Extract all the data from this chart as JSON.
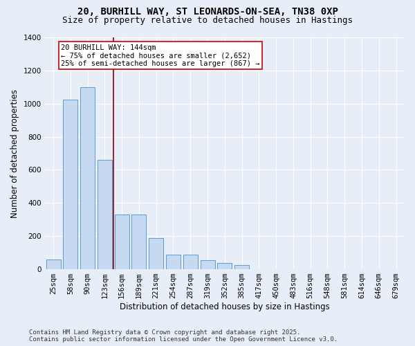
{
  "title_line1": "20, BURHILL WAY, ST LEONARDS-ON-SEA, TN38 0XP",
  "title_line2": "Size of property relative to detached houses in Hastings",
  "xlabel": "Distribution of detached houses by size in Hastings",
  "ylabel": "Number of detached properties",
  "categories": [
    "25sqm",
    "58sqm",
    "90sqm",
    "123sqm",
    "156sqm",
    "189sqm",
    "221sqm",
    "254sqm",
    "287sqm",
    "319sqm",
    "352sqm",
    "385sqm",
    "417sqm",
    "450sqm",
    "483sqm",
    "516sqm",
    "548sqm",
    "581sqm",
    "614sqm",
    "646sqm",
    "679sqm"
  ],
  "values": [
    60,
    1025,
    1100,
    660,
    330,
    330,
    190,
    90,
    90,
    55,
    40,
    25,
    0,
    0,
    0,
    0,
    0,
    0,
    0,
    0,
    0
  ],
  "bar_color": "#c5d9f0",
  "bar_edge_color": "#5b9bd5",
  "vline_color": "#8b0000",
  "annotation_text": "20 BURHILL WAY: 144sqm\n← 75% of detached houses are smaller (2,652)\n25% of semi-detached houses are larger (867) →",
  "annotation_box_color": "#ffffff",
  "annotation_box_edge": "#cc0000",
  "ylim": [
    0,
    1400
  ],
  "yticks": [
    0,
    200,
    400,
    600,
    800,
    1000,
    1200,
    1400
  ],
  "bg_color": "#e8eef8",
  "plot_bg_color": "#e8eef8",
  "footer_line1": "Contains HM Land Registry data © Crown copyright and database right 2025.",
  "footer_line2": "Contains public sector information licensed under the Open Government Licence v3.0.",
  "title_fontsize": 10,
  "subtitle_fontsize": 9,
  "axis_label_fontsize": 8.5,
  "tick_fontsize": 7.5,
  "annotation_fontsize": 7.5,
  "footer_fontsize": 6.5,
  "vline_pos": 3.5
}
